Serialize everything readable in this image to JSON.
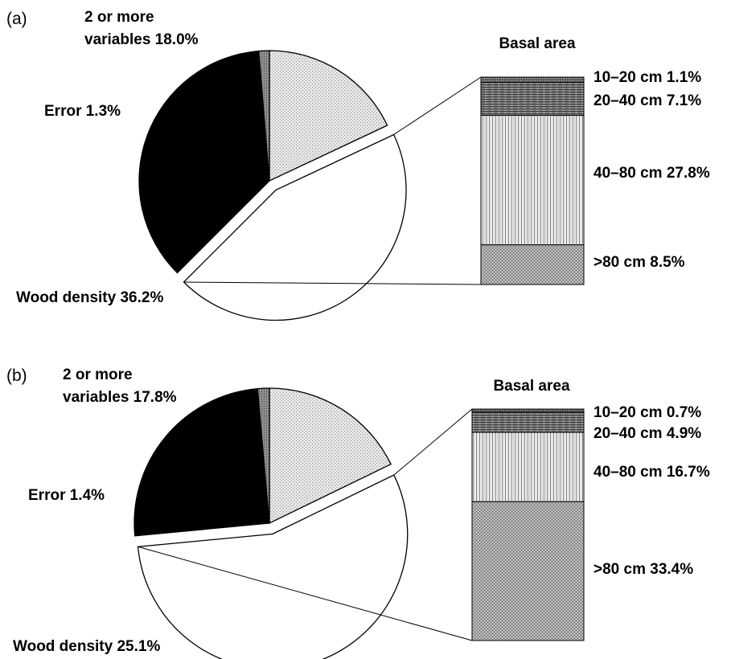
{
  "chart_data": [
    {
      "type": "pie",
      "panel_label": "(a)",
      "slices": [
        {
          "name": "2 or more variables",
          "value": 18.0,
          "label_lines": [
            "2 or more",
            "variables  18.0%"
          ],
          "pattern": "light-stipple"
        },
        {
          "name": "Basal area",
          "value": 44.5,
          "label_lines": [],
          "pattern": "white",
          "exploded": true
        },
        {
          "name": "Wood density",
          "value": 36.2,
          "label_lines": [
            "Wood density 36.2%"
          ],
          "pattern": "black"
        },
        {
          "name": "Error",
          "value": 1.3,
          "label_lines": [
            "Error 1.3%"
          ],
          "pattern": "gray-stipple"
        }
      ],
      "breakdown": {
        "title": "Basal area",
        "segments": [
          {
            "name": "10–20 cm",
            "value": 1.1,
            "label": "10–20 cm 1.1%",
            "pattern": "dark-stipple"
          },
          {
            "name": "20–40 cm",
            "value": 7.1,
            "label": "20–40 cm 7.1%",
            "pattern": "dark-horizontal"
          },
          {
            "name": "40–80 cm",
            "value": 27.8,
            "label": "40–80 cm 27.8%",
            "pattern": "vertical-lines"
          },
          {
            "name": ">80 cm",
            "value": 8.5,
            "label": ">80 cm 8.5%",
            "pattern": "crosshatch"
          }
        ]
      }
    },
    {
      "type": "pie",
      "panel_label": "(b)",
      "slices": [
        {
          "name": "2 or more variables",
          "value": 17.8,
          "label_lines": [
            "2 or more",
            "variables  17.8%"
          ],
          "pattern": "light-stipple"
        },
        {
          "name": "Basal area",
          "value": 55.7,
          "label_lines": [],
          "pattern": "white",
          "exploded": true
        },
        {
          "name": "Wood density",
          "value": 25.1,
          "label_lines": [
            "Wood density 25.1%"
          ],
          "pattern": "black"
        },
        {
          "name": "Error",
          "value": 1.4,
          "label_lines": [
            "Error 1.4%"
          ],
          "pattern": "gray-stipple"
        }
      ],
      "breakdown": {
        "title": "Basal area",
        "segments": [
          {
            "name": "10–20 cm",
            "value": 0.7,
            "label": "10–20 cm 0.7%",
            "pattern": "dark-stipple"
          },
          {
            "name": "20–40 cm",
            "value": 4.9,
            "label": "20–40 cm 4.9%",
            "pattern": "dark-horizontal"
          },
          {
            "name": "40–80 cm",
            "value": 16.7,
            "label": "40–80 cm 16.7%",
            "pattern": "vertical-lines"
          },
          {
            "name": ">80 cm",
            "value": 33.4,
            "label": ">80 cm 33.4%",
            "pattern": "crosshatch"
          }
        ]
      }
    }
  ]
}
